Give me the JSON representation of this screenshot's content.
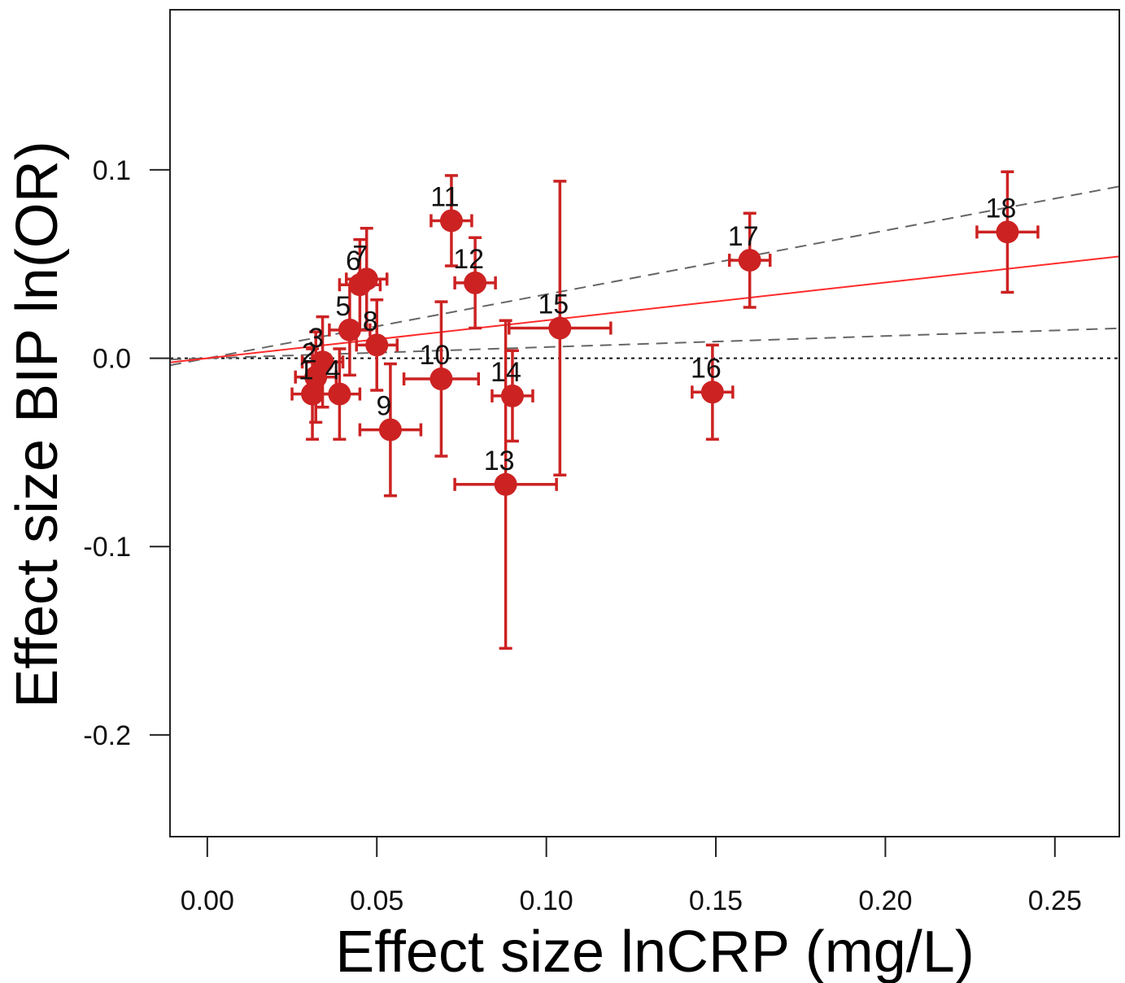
{
  "chart_data": {
    "type": "scatter",
    "xlabel": "Effect size lnCRP (mg/L)",
    "ylabel": "Effect size BIP ln(OR)",
    "xlim": [
      -0.011,
      0.269
    ],
    "ylim": [
      -0.254,
      0.185
    ],
    "x_ticks": [
      {
        "value": 0.0,
        "label": "0.00"
      },
      {
        "value": 0.05,
        "label": "0.05"
      },
      {
        "value": 0.1,
        "label": "0.10"
      },
      {
        "value": 0.15,
        "label": "0.15"
      },
      {
        "value": 0.2,
        "label": "0.20"
      },
      {
        "value": 0.25,
        "label": "0.25"
      }
    ],
    "y_ticks": [
      {
        "value": 0.1,
        "label": "0.1"
      },
      {
        "value": 0.0,
        "label": "0.0"
      },
      {
        "value": -0.1,
        "label": "-0.1"
      },
      {
        "value": -0.2,
        "label": "-0.2"
      }
    ],
    "grid": false,
    "colors": {
      "points": "#cc2222",
      "fit_line": "#ff2b2b",
      "ci_lines": "#666666",
      "zero_line": "#111111"
    },
    "reference_line": {
      "y": 0,
      "style": "dotted"
    },
    "fit_line": {
      "slope": 0.201,
      "intercept": 0,
      "style": "solid"
    },
    "ci_lines": [
      {
        "slope": 0.339,
        "intercept": 0,
        "style": "dashed"
      },
      {
        "slope": 0.059,
        "intercept": 0,
        "style": "dashed"
      }
    ],
    "points": [
      {
        "label": "1",
        "x": 0.031,
        "y": -0.019,
        "xerr": 0.006,
        "yerr": 0.024
      },
      {
        "label": "2",
        "x": 0.032,
        "y": -0.01,
        "xerr": 0.006,
        "yerr": 0.024
      },
      {
        "label": "3",
        "x": 0.034,
        "y": -0.002,
        "xerr": 0.006,
        "yerr": 0.024
      },
      {
        "label": "4",
        "x": 0.039,
        "y": -0.019,
        "xerr": 0.006,
        "yerr": 0.024
      },
      {
        "label": "5",
        "x": 0.042,
        "y": 0.015,
        "xerr": 0.006,
        "yerr": 0.024
      },
      {
        "label": "6",
        "x": 0.045,
        "y": 0.039,
        "xerr": 0.006,
        "yerr": 0.024
      },
      {
        "label": "7",
        "x": 0.047,
        "y": 0.042,
        "xerr": 0.006,
        "yerr": 0.027
      },
      {
        "label": "8",
        "x": 0.05,
        "y": 0.007,
        "xerr": 0.006,
        "yerr": 0.024
      },
      {
        "label": "9",
        "x": 0.054,
        "y": -0.038,
        "xerr": 0.009,
        "yerr": 0.035
      },
      {
        "label": "10",
        "x": 0.069,
        "y": -0.011,
        "xerr": 0.011,
        "yerr": 0.041
      },
      {
        "label": "11",
        "x": 0.072,
        "y": 0.073,
        "xerr": 0.006,
        "yerr": 0.024
      },
      {
        "label": "12",
        "x": 0.079,
        "y": 0.04,
        "xerr": 0.006,
        "yerr": 0.024
      },
      {
        "label": "13",
        "x": 0.088,
        "y": -0.067,
        "xerr": 0.015,
        "yerr": 0.087
      },
      {
        "label": "14",
        "x": 0.09,
        "y": -0.02,
        "xerr": 0.006,
        "yerr": 0.024
      },
      {
        "label": "15",
        "x": 0.104,
        "y": 0.016,
        "xerr": 0.015,
        "yerr": 0.078
      },
      {
        "label": "16",
        "x": 0.149,
        "y": -0.018,
        "xerr": 0.006,
        "yerr": 0.025
      },
      {
        "label": "17",
        "x": 0.16,
        "y": 0.052,
        "xerr": 0.006,
        "yerr": 0.025
      },
      {
        "label": "18",
        "x": 0.236,
        "y": 0.067,
        "xerr": 0.009,
        "yerr": 0.032
      }
    ]
  }
}
